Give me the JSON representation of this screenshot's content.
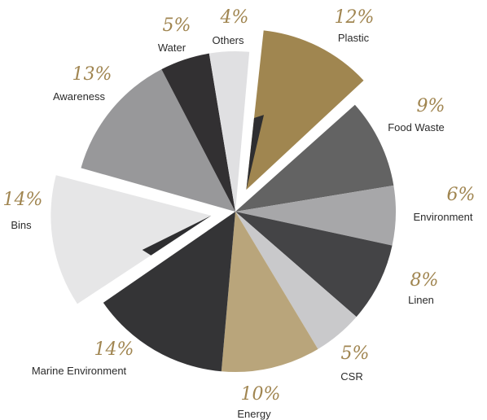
{
  "chart_data": {
    "type": "pie",
    "slices": [
      {
        "label": "Plastic",
        "value": 12,
        "display": "12%",
        "color": "#a08650",
        "exploded": true
      },
      {
        "label": "Food Waste",
        "value": 9,
        "display": "9%",
        "color": "#636363",
        "exploded": false
      },
      {
        "label": "Environment",
        "value": 6,
        "display": "6%",
        "color": "#a7a7a9",
        "exploded": false
      },
      {
        "label": "Linen",
        "value": 8,
        "display": "8%",
        "color": "#444446",
        "exploded": false
      },
      {
        "label": "CSR",
        "value": 5,
        "display": "5%",
        "color": "#c9c9cb",
        "exploded": false
      },
      {
        "label": "Energy",
        "value": 10,
        "display": "10%",
        "color": "#b9a57b",
        "exploded": false
      },
      {
        "label": "Marine Environment",
        "value": 14,
        "display": "14%",
        "color": "#343436",
        "exploded": false
      },
      {
        "label": "Bins",
        "value": 14,
        "display": "14%",
        "color": "#e6e6e7",
        "exploded": true
      },
      {
        "label": "Awareness",
        "value": 13,
        "display": "13%",
        "color": "#98989a",
        "exploded": false
      },
      {
        "label": "Water",
        "value": 5,
        "display": "5%",
        "color": "#323032",
        "exploded": false
      },
      {
        "label": "Others",
        "value": 4,
        "display": "4%",
        "color": "#e0e0e2",
        "exploded": false
      }
    ],
    "inner_shadow_color": "#2e2e30",
    "percent_color": "#a08550",
    "label_color": "#2b2b2b"
  }
}
